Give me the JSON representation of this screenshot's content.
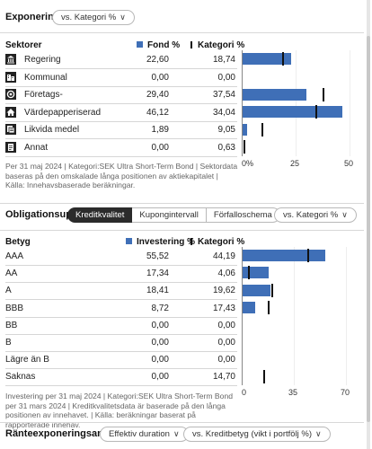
{
  "exponering": {
    "title": "Exponering",
    "dropdown": "vs. Kategori %",
    "col_label": "Sektorer",
    "col1": "Fond  %",
    "col2": "Kategori  %",
    "rows": [
      {
        "label": "Regering",
        "icon": "government-icon",
        "fond": "22,60",
        "kategori": "18,74",
        "fond_val": 22.6,
        "kat_val": 18.74
      },
      {
        "label": "Kommunal",
        "icon": "municipal-icon",
        "fond": "0,00",
        "kategori": "0,00",
        "fond_val": 0,
        "kat_val": 0
      },
      {
        "label": "Företags-",
        "icon": "corporate-icon",
        "fond": "29,40",
        "kategori": "37,54",
        "fond_val": 29.4,
        "kat_val": 37.54
      },
      {
        "label": "Värdepapperiserad",
        "icon": "securitized-icon",
        "fond": "46,12",
        "kategori": "34,04",
        "fond_val": 46.12,
        "kat_val": 34.04
      },
      {
        "label": "Likvida medel",
        "icon": "cash-icon",
        "fond": "1,89",
        "kategori": "9,05",
        "fond_val": 1.89,
        "kat_val": 9.05
      },
      {
        "label": "Annat",
        "icon": "other-icon",
        "fond": "0,00",
        "kategori": "0,63",
        "fond_val": 0,
        "kat_val": 0.63
      }
    ],
    "axis_ticks": [
      "0%",
      "25",
      "50"
    ],
    "axis_max": 50,
    "footnote": "Per 31 maj 2024 | Kategori:SEK Ultra Short-Term Bond | Sektordata baseras på den omskalade långa positionen av aktiekapitalet | Källa: Innehavsbaserade beräkningar."
  },
  "obligation": {
    "title": "Obligationsuppdelning",
    "tabs": [
      "Kreditkvalitet",
      "Kupongintervall",
      "Förfalloschema"
    ],
    "active_tab": 0,
    "dropdown": "vs. Kategori %",
    "col_label": "Betyg",
    "col1": "Investering  %",
    "col2": "Kategori  %",
    "rows": [
      {
        "label": "AAA",
        "inv": "55,52",
        "kategori": "44,19",
        "inv_val": 55.52,
        "kat_val": 44.19
      },
      {
        "label": "AA",
        "inv": "17,34",
        "kategori": "4,06",
        "inv_val": 17.34,
        "kat_val": 4.06
      },
      {
        "label": "A",
        "inv": "18,41",
        "kategori": "19,62",
        "inv_val": 18.41,
        "kat_val": 19.62
      },
      {
        "label": "BBB",
        "inv": "8,72",
        "kategori": "17,43",
        "inv_val": 8.72,
        "kat_val": 17.43
      },
      {
        "label": "BB",
        "inv": "0,00",
        "kategori": "0,00",
        "inv_val": 0,
        "kat_val": 0
      },
      {
        "label": "B",
        "inv": "0,00",
        "kategori": "0,00",
        "inv_val": 0,
        "kat_val": 0
      },
      {
        "label": "Lägre än B",
        "inv": "0,00",
        "kategori": "0,00",
        "inv_val": 0,
        "kat_val": 0
      },
      {
        "label": "Saknas",
        "inv": "0,00",
        "kategori": "14,70",
        "inv_val": 0,
        "kat_val": 14.7
      }
    ],
    "axis_ticks": [
      "0",
      "35",
      "70"
    ],
    "axis_max": 70,
    "footnote": "Investering per 31 maj 2024 | Kategori:SEK Ultra Short-Term Bond per 31 mars 2024 | Kreditkvalitetsdata är baserade på den långa positionen av innehavet. | Källa: beräkningar baserat på rapporterade innehav."
  },
  "ranteexponering": {
    "title": "Ränteexponeringsanalys",
    "dropdown1": "Effektiv duration",
    "dropdown2": "vs. Kreditbetyg (vikt i portfölj %)"
  },
  "colors": {
    "bar": "#3f6fb7",
    "marker": "#111111"
  }
}
